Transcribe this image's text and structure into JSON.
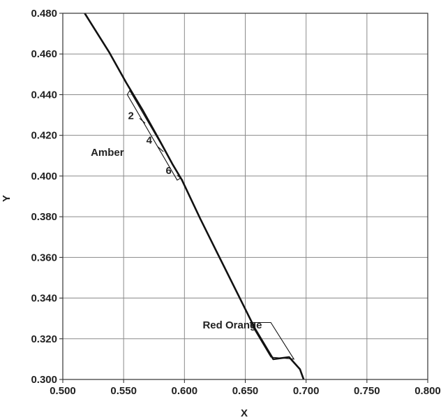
{
  "chart_data": {
    "type": "line",
    "title": "",
    "xlabel": "X",
    "ylabel": "Y",
    "xlim": [
      0.5,
      0.8
    ],
    "ylim": [
      0.3,
      0.48
    ],
    "x_ticks": [
      "0.500",
      "0.550",
      "0.600",
      "0.650",
      "0.700",
      "0.750",
      "0.800"
    ],
    "y_ticks": [
      "0.300",
      "0.320",
      "0.340",
      "0.360",
      "0.380",
      "0.400",
      "0.420",
      "0.440",
      "0.460",
      "0.480"
    ],
    "grid": true,
    "legend": "none",
    "line_color": "#111111",
    "series": [
      {
        "x": [
          0.518,
          0.538,
          0.552,
          0.566,
          0.58,
          0.59,
          0.598,
          0.613,
          0.628,
          0.643,
          0.658,
          0.673,
          0.686,
          0.695,
          0.698
        ],
        "y": [
          0.48,
          0.461,
          0.446,
          0.432,
          0.417,
          0.406,
          0.398,
          0.379,
          0.361,
          0.343,
          0.325,
          0.31,
          0.311,
          0.305,
          0.3
        ]
      }
    ],
    "regions": [
      {
        "label": "Amber",
        "label_pos": [
          0.523,
          0.41
        ],
        "polygon": [
          [
            0.555,
            0.442
          ],
          [
            0.553,
            0.44
          ],
          [
            0.594,
            0.398
          ],
          [
            0.597,
            0.399
          ]
        ],
        "ticks": [
          {
            "label": "2",
            "x": 0.566,
            "y": 0.427,
            "label_pos": [
              0.556,
              0.428
            ]
          },
          {
            "label": "4",
            "x": 0.581,
            "y": 0.413,
            "label_pos": [
              0.571,
              0.416
            ]
          },
          {
            "label": "6",
            "x": 0.597,
            "y": 0.399,
            "label_pos": [
              0.587,
              0.401
            ]
          }
        ]
      },
      {
        "label": "Red Orange",
        "label_pos": [
          0.615,
          0.325
        ],
        "polygon": [
          [
            0.654,
            0.328
          ],
          [
            0.671,
            0.328
          ],
          [
            0.69,
            0.31
          ],
          [
            0.671,
            0.311
          ]
        ]
      }
    ]
  }
}
